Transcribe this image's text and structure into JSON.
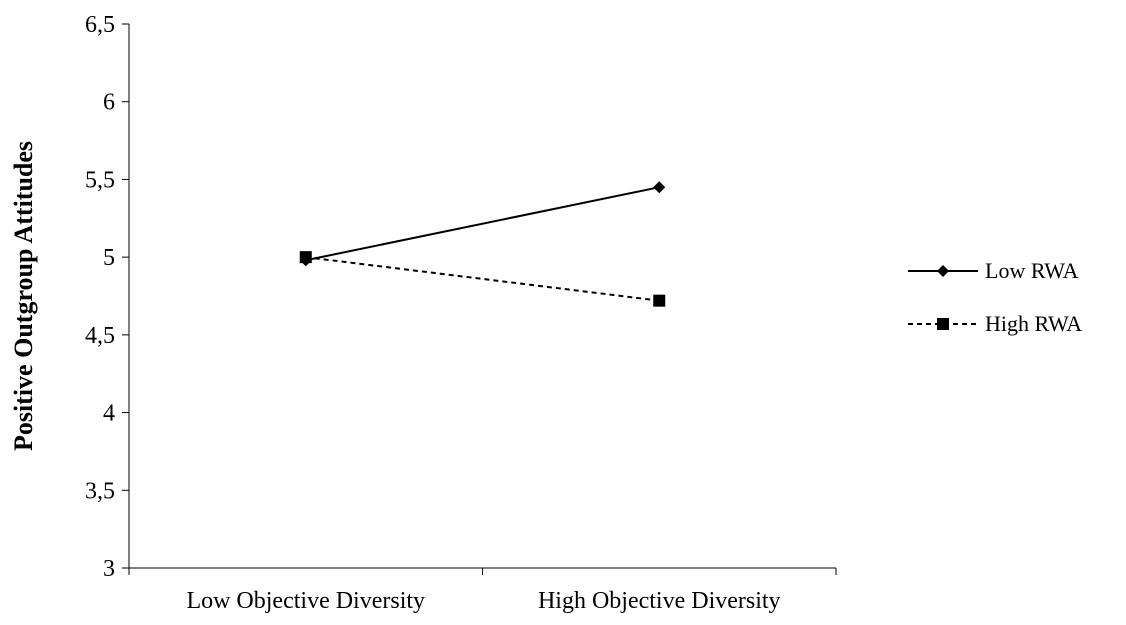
{
  "chart_data": {
    "type": "line",
    "categories": [
      "Low Objective Diversity",
      "High Objective Diversity"
    ],
    "series": [
      {
        "name": "Low RWA",
        "values": [
          4.98,
          5.45
        ],
        "marker": "diamond",
        "line_style": "solid",
        "color": "#000000"
      },
      {
        "name": "High RWA",
        "values": [
          5.0,
          4.72
        ],
        "marker": "square",
        "line_style": "dashed",
        "color": "#000000"
      }
    ],
    "title": "",
    "xlabel": "",
    "ylabel": "Positive Outgroup Attitudes",
    "ylim": [
      3,
      6.5
    ],
    "yticks": [
      3,
      3.5,
      4,
      4.5,
      5,
      5.5,
      6,
      6.5
    ],
    "ytick_labels": [
      "3",
      "3,5",
      "4",
      "4,5",
      "5",
      "5,5",
      "6",
      "6,5"
    ],
    "grid": false,
    "legend": "right"
  }
}
